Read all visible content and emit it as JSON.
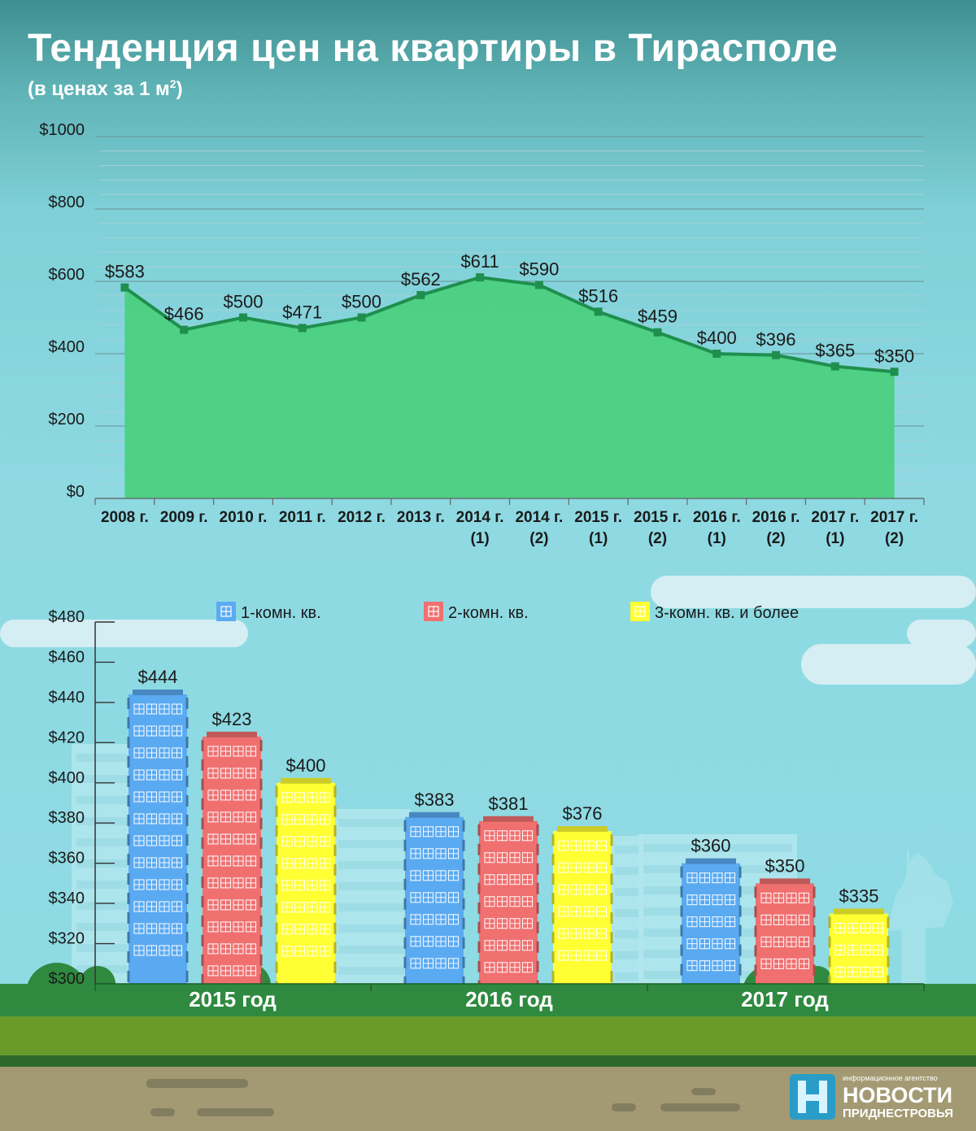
{
  "title": "Тенденция цен на квартиры в Тирасполе",
  "subtitle": "(в ценах за 1 м",
  "subtitle_sup": "2",
  "subtitle_end": ")",
  "colors": {
    "area": "#4bd080",
    "line": "#1f8f4e",
    "one_room": "#5aaaf2",
    "two_room": "#f07070",
    "three_room": "#ffff33",
    "grass_dark": "#2f8a3f",
    "grass_light": "#6a9a2a",
    "ground": "#a39a73"
  },
  "chart_data": [
    {
      "type": "area",
      "categories": [
        [
          "2008 г.",
          ""
        ],
        [
          "2009 г.",
          ""
        ],
        [
          "2010 г.",
          ""
        ],
        [
          "2011 г.",
          ""
        ],
        [
          "2012 г.",
          ""
        ],
        [
          "2013 г.",
          ""
        ],
        [
          "2014 г.",
          "(1)"
        ],
        [
          "2014 г.",
          "(2)"
        ],
        [
          "2015 г.",
          "(1)"
        ],
        [
          "2015 г.",
          "(2)"
        ],
        [
          "2016 г.",
          "(1)"
        ],
        [
          "2016 г.",
          "(2)"
        ],
        [
          "2017 г.",
          "(1)"
        ],
        [
          "2017 г.",
          "(2)"
        ]
      ],
      "values": [
        583,
        466,
        500,
        471,
        500,
        562,
        611,
        590,
        516,
        459,
        400,
        396,
        365,
        350
      ],
      "value_labels": [
        "$583",
        "$466",
        "$500",
        "$471",
        "$500",
        "$562",
        "$611",
        "$590",
        "$516",
        "$459",
        "$400",
        "$396",
        "$365",
        "$350"
      ],
      "yticks": [
        "$0",
        "$200",
        "$400",
        "$600",
        "$800",
        "$1000"
      ],
      "ylim": [
        0,
        1000
      ],
      "grid": true
    },
    {
      "type": "bar",
      "categories": [
        "2015 год",
        "2016 год",
        "2017 год"
      ],
      "series": [
        {
          "name": "1-комн. кв.",
          "values": [
            444,
            383,
            360
          ],
          "labels": [
            "$444",
            "$383",
            "$360"
          ]
        },
        {
          "name": "2-комн. кв.",
          "values": [
            423,
            381,
            350
          ],
          "labels": [
            "$423",
            "$381",
            "$350"
          ]
        },
        {
          "name": "3-комн. кв. и более",
          "values": [
            400,
            376,
            335
          ],
          "labels": [
            "$400",
            "$376",
            "$335"
          ]
        }
      ],
      "yticks": [
        "$300",
        "$320",
        "$340",
        "$360",
        "$380",
        "$400",
        "$420",
        "$440",
        "$460",
        "$480"
      ],
      "ylim": [
        300,
        480
      ],
      "legend_position": "top"
    }
  ],
  "logo": {
    "line1": "информационное агентство",
    "line2": "НОВОСТИ",
    "line3": "ПРИДНЕСТРОВЬЯ"
  }
}
